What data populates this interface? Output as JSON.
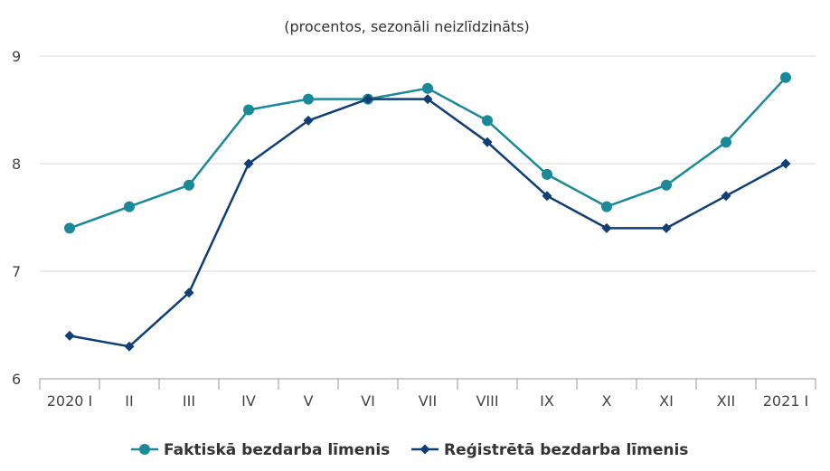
{
  "chart_data": {
    "type": "line",
    "subtitle": "(procentos, sezonāli neizlīdzināts)",
    "categories": [
      "2020 I",
      "II",
      "III",
      "IV",
      "V",
      "VI",
      "VII",
      "VIII",
      "IX",
      "X",
      "XI",
      "XII",
      "2021 I"
    ],
    "ylim": [
      6,
      9
    ],
    "yticks": [
      6,
      7,
      8,
      9
    ],
    "grid": true,
    "legend_position": "bottom",
    "series": [
      {
        "name": "Faktiskā bezdarba līmenis",
        "marker": "circle",
        "color": "#1a8a98",
        "values": [
          7.4,
          7.6,
          7.8,
          8.5,
          8.6,
          8.6,
          8.7,
          8.4,
          7.9,
          7.6,
          7.8,
          8.2,
          8.8
        ]
      },
      {
        "name": "Reģistrētā bezdarba līmenis",
        "marker": "diamond",
        "color": "#0f3f75",
        "values": [
          6.4,
          6.3,
          6.8,
          8.0,
          8.4,
          8.6,
          8.6,
          8.2,
          7.7,
          7.4,
          7.4,
          7.7,
          8.0
        ]
      }
    ]
  }
}
